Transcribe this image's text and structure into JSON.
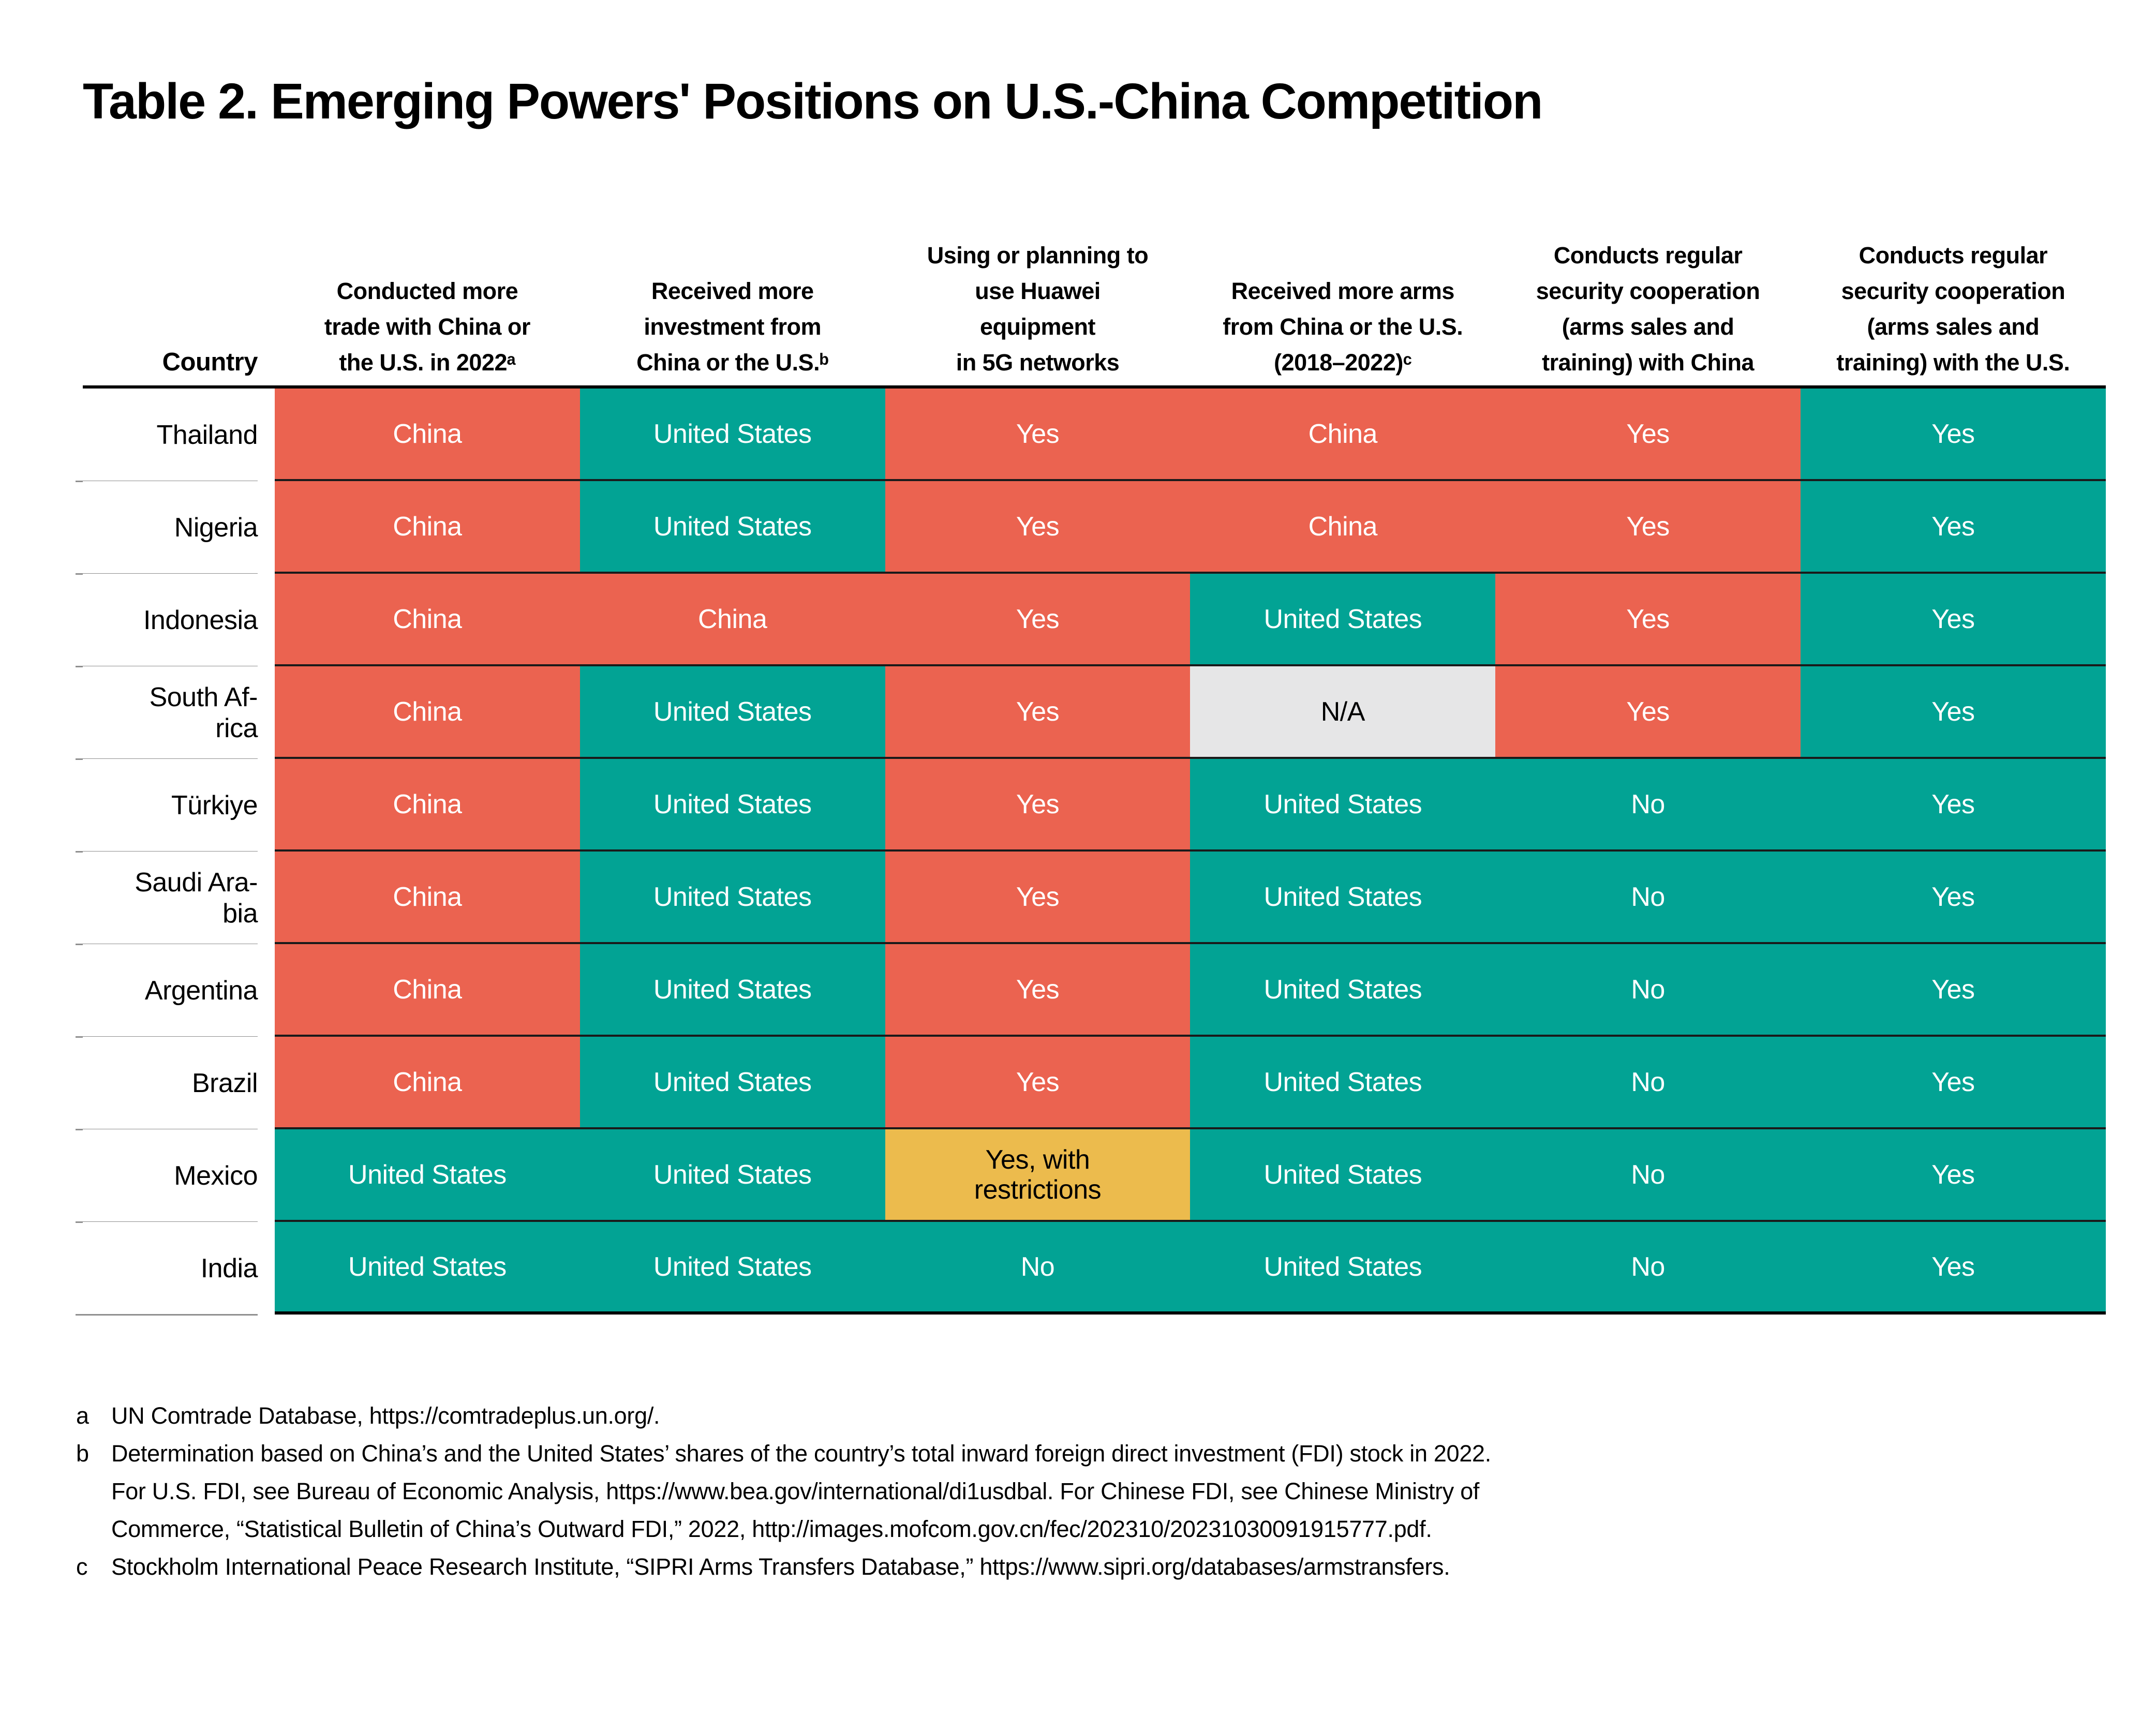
{
  "title": "Table 2. Emerging Powers' Positions on U.S.-China Competition",
  "colors": {
    "china_orange": "#EB6350",
    "us_teal": "#02A394",
    "na_gray": "#E6E6E7",
    "restricted_yellow": "#ECBB4D"
  },
  "table": {
    "country_header": "Country",
    "columns": [
      {
        "lines": [
          "Conducted more",
          "trade with China or",
          "the U.S. in 2022ᵃ"
        ]
      },
      {
        "lines": [
          "Received more",
          "investment from",
          "China or the U.S.ᵇ"
        ]
      },
      {
        "lines": [
          "Using or planning to",
          "use Huawei",
          "equipment",
          "in 5G networks"
        ]
      },
      {
        "lines": [
          "Received more arms",
          "from China or the U.S.",
          "(2018–2022)ᶜ"
        ]
      },
      {
        "lines": [
          "Conducts regular",
          "security cooperation",
          "(arms sales  and",
          "training) with China"
        ]
      },
      {
        "lines": [
          "Conducts regular",
          "security cooperation",
          "(arms sales and",
          "training) with the U.S."
        ]
      }
    ],
    "rows": [
      {
        "country": "Thailand",
        "cells": [
          {
            "text": "China",
            "tone": "china"
          },
          {
            "text": "United States",
            "tone": "us"
          },
          {
            "text": "Yes",
            "tone": "china"
          },
          {
            "text": "China",
            "tone": "china"
          },
          {
            "text": "Yes",
            "tone": "china"
          },
          {
            "text": "Yes",
            "tone": "us"
          }
        ]
      },
      {
        "country": "Nigeria",
        "cells": [
          {
            "text": "China",
            "tone": "china"
          },
          {
            "text": "United States",
            "tone": "us"
          },
          {
            "text": "Yes",
            "tone": "china"
          },
          {
            "text": "China",
            "tone": "china"
          },
          {
            "text": "Yes",
            "tone": "china"
          },
          {
            "text": "Yes",
            "tone": "us"
          }
        ]
      },
      {
        "country": "Indonesia",
        "cells": [
          {
            "text": "China",
            "tone": "china"
          },
          {
            "text": "China",
            "tone": "china"
          },
          {
            "text": "Yes",
            "tone": "china"
          },
          {
            "text": "United States",
            "tone": "us"
          },
          {
            "text": "Yes",
            "tone": "china"
          },
          {
            "text": "Yes",
            "tone": "us"
          }
        ]
      },
      {
        "country": "South Af-\nrica",
        "cells": [
          {
            "text": "China",
            "tone": "china"
          },
          {
            "text": "United States",
            "tone": "us"
          },
          {
            "text": "Yes",
            "tone": "china"
          },
          {
            "text": "N/A",
            "tone": "na"
          },
          {
            "text": "Yes",
            "tone": "china"
          },
          {
            "text": "Yes",
            "tone": "us"
          }
        ]
      },
      {
        "country": "Türkiye",
        "cells": [
          {
            "text": "China",
            "tone": "china"
          },
          {
            "text": "United States",
            "tone": "us"
          },
          {
            "text": "Yes",
            "tone": "china"
          },
          {
            "text": "United States",
            "tone": "us"
          },
          {
            "text": "No",
            "tone": "us"
          },
          {
            "text": "Yes",
            "tone": "us"
          }
        ]
      },
      {
        "country": "Saudi Ara-\nbia",
        "cells": [
          {
            "text": "China",
            "tone": "china"
          },
          {
            "text": "United States",
            "tone": "us"
          },
          {
            "text": "Yes",
            "tone": "china"
          },
          {
            "text": "United States",
            "tone": "us"
          },
          {
            "text": "No",
            "tone": "us"
          },
          {
            "text": "Yes",
            "tone": "us"
          }
        ]
      },
      {
        "country": "Argentina",
        "cells": [
          {
            "text": "China",
            "tone": "china"
          },
          {
            "text": "United States",
            "tone": "us"
          },
          {
            "text": "Yes",
            "tone": "china"
          },
          {
            "text": "United States",
            "tone": "us"
          },
          {
            "text": "No",
            "tone": "us"
          },
          {
            "text": "Yes",
            "tone": "us"
          }
        ]
      },
      {
        "country": "Brazil",
        "cells": [
          {
            "text": "China",
            "tone": "china"
          },
          {
            "text": "United States",
            "tone": "us"
          },
          {
            "text": "Yes",
            "tone": "china"
          },
          {
            "text": "United States",
            "tone": "us"
          },
          {
            "text": "No",
            "tone": "us"
          },
          {
            "text": "Yes",
            "tone": "us"
          }
        ]
      },
      {
        "country": "Mexico",
        "cells": [
          {
            "text": "United States",
            "tone": "us"
          },
          {
            "text": "United States",
            "tone": "us"
          },
          {
            "text": "Yes, with\nrestrictions",
            "tone": "restricted"
          },
          {
            "text": "United States",
            "tone": "us"
          },
          {
            "text": "No",
            "tone": "us"
          },
          {
            "text": "Yes",
            "tone": "us"
          }
        ]
      },
      {
        "country": "India",
        "cells": [
          {
            "text": "United States",
            "tone": "us"
          },
          {
            "text": "United States",
            "tone": "us"
          },
          {
            "text": "No",
            "tone": "us"
          },
          {
            "text": "United States",
            "tone": "us"
          },
          {
            "text": "No",
            "tone": "us"
          },
          {
            "text": "Yes",
            "tone": "us"
          }
        ]
      }
    ]
  },
  "footnotes": [
    {
      "marker": "a",
      "lines": [
        "UN Comtrade Database, https://comtradeplus.un.org/."
      ]
    },
    {
      "marker": "b",
      "lines": [
        "Determination based on China’s and the United States’ shares of the country’s total inward foreign direct investment (FDI) stock in 2022.",
        "For U.S. FDI, see Bureau of Economic   Analysis, https://www.bea.gov/international/di1usdbal. For Chinese FDI, see Chinese Ministry of",
        "Commerce, “Statistical Bulletin of China’s Outward FDI,” 2022, http://images.mofcom.gov.cn/fec/202310/20231030091915777.pdf."
      ]
    },
    {
      "marker": "c",
      "lines": [
        "Stockholm International Peace Research Institute, “SIPRI Arms Transfers Database,” https://www.sipri.org/databases/armstransfers."
      ]
    }
  ]
}
